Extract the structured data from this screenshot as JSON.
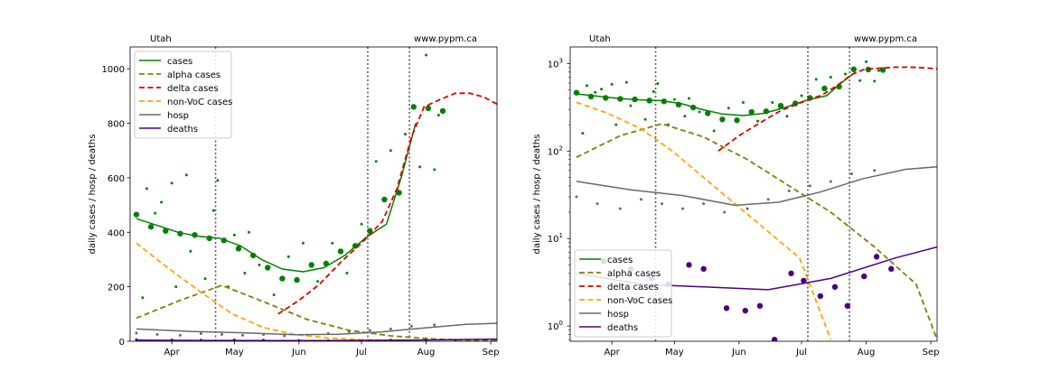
{
  "chart_data": [
    {
      "type": "line",
      "scale": "linear",
      "title": "Utah",
      "source": "www.pypm.ca",
      "xlabel": "",
      "ylabel": "daily cases / hosp / deaths",
      "x_ticks": [
        "Apr",
        "May",
        "Jun",
        "Jul",
        "Aug",
        "Sep"
      ],
      "y_ticks": [
        "0",
        "200",
        "400",
        "600",
        "800",
        "1000"
      ],
      "ylim": [
        0,
        1080
      ],
      "xlim": [
        "2021-03-12",
        "2021-09-04"
      ],
      "grid": false,
      "legend_position": "top-left",
      "vlines": [
        "2021-04-22",
        "2021-07-04",
        "2021-07-24"
      ],
      "series": [
        {
          "name": "cases",
          "color": "#008000",
          "dash": "solid",
          "x": [
            "2021-03-15",
            "2021-03-25",
            "2021-04-04",
            "2021-04-14",
            "2021-04-24",
            "2021-05-04",
            "2021-05-14",
            "2021-05-24",
            "2021-06-03",
            "2021-06-13",
            "2021-06-23",
            "2021-07-03",
            "2021-07-13",
            "2021-07-20",
            "2021-07-27"
          ],
          "y": [
            450,
            425,
            400,
            385,
            378,
            350,
            300,
            265,
            255,
            270,
            315,
            380,
            430,
            600,
            800
          ]
        },
        {
          "name": "alpha cases",
          "color": "#808000",
          "dash": "dashed",
          "x": [
            "2021-03-15",
            "2021-04-05",
            "2021-04-25",
            "2021-05-15",
            "2021-06-05",
            "2021-06-25",
            "2021-07-15",
            "2021-08-05",
            "2021-08-25",
            "2021-09-04"
          ],
          "y": [
            85,
            150,
            205,
            145,
            80,
            40,
            20,
            8,
            3,
            2
          ]
        },
        {
          "name": "delta cases",
          "color": "#dd0000",
          "dash": "dashed",
          "x": [
            "2021-05-22",
            "2021-06-01",
            "2021-06-11",
            "2021-06-21",
            "2021-07-01",
            "2021-07-11",
            "2021-07-18",
            "2021-07-25",
            "2021-07-31",
            "2021-08-07",
            "2021-08-15",
            "2021-08-22",
            "2021-08-29",
            "2021-09-04"
          ],
          "y": [
            100,
            150,
            210,
            290,
            360,
            440,
            560,
            750,
            860,
            885,
            910,
            910,
            895,
            870
          ]
        },
        {
          "name": "non-VoC cases",
          "color": "#ffa500",
          "dash": "dashed",
          "x": [
            "2021-03-15",
            "2021-03-30",
            "2021-04-15",
            "2021-04-30",
            "2021-05-15",
            "2021-05-30",
            "2021-06-15",
            "2021-06-30",
            "2021-07-15"
          ],
          "y": [
            360,
            270,
            180,
            100,
            50,
            25,
            12,
            6,
            3
          ]
        },
        {
          "name": "hosp",
          "color": "#696969",
          "dash": "solid",
          "x": [
            "2021-03-15",
            "2021-04-10",
            "2021-05-05",
            "2021-05-30",
            "2021-06-20",
            "2021-07-10",
            "2021-07-30",
            "2021-08-20",
            "2021-09-04"
          ],
          "y": [
            45,
            36,
            31,
            24,
            26,
            34,
            48,
            62,
            66
          ]
        },
        {
          "name": "deaths",
          "color": "#4b0082",
          "dash": "solid",
          "x": [
            "2021-03-15",
            "2021-04-15",
            "2021-05-15",
            "2021-06-15",
            "2021-07-15",
            "2021-08-15",
            "2021-09-04"
          ],
          "y": [
            4,
            3,
            2.8,
            2.6,
            3.5,
            6,
            8
          ]
        }
      ],
      "markers": [
        {
          "series": "cases",
          "color": "#008000",
          "size": "large",
          "x": [
            "2021-03-15",
            "2021-03-22",
            "2021-03-29",
            "2021-04-05",
            "2021-04-12",
            "2021-04-19",
            "2021-04-26",
            "2021-05-03",
            "2021-05-10",
            "2021-05-17",
            "2021-05-24",
            "2021-05-31",
            "2021-06-07",
            "2021-06-14",
            "2021-06-21",
            "2021-06-28",
            "2021-07-05",
            "2021-07-12",
            "2021-07-19",
            "2021-07-26",
            "2021-08-02",
            "2021-08-09"
          ],
          "y": [
            465,
            420,
            405,
            395,
            390,
            378,
            370,
            340,
            315,
            270,
            230,
            225,
            280,
            285,
            330,
            350,
            405,
            520,
            545,
            860,
            855,
            845
          ]
        },
        {
          "series": "cases",
          "color": "#008000",
          "size": "small",
          "x": [
            "2021-03-18",
            "2021-03-20",
            "2021-03-24",
            "2021-03-27",
            "2021-04-01",
            "2021-04-03",
            "2021-04-08",
            "2021-04-10",
            "2021-04-17",
            "2021-04-21",
            "2021-04-23",
            "2021-04-28",
            "2021-05-01",
            "2021-05-06",
            "2021-05-08",
            "2021-05-13",
            "2021-05-20",
            "2021-05-27",
            "2021-06-03",
            "2021-06-10",
            "2021-06-17",
            "2021-06-24",
            "2021-07-01",
            "2021-07-08",
            "2021-07-15",
            "2021-07-22",
            "2021-07-29",
            "2021-08-01",
            "2021-08-05",
            "2021-08-07"
          ],
          "y": [
            160,
            560,
            470,
            510,
            580,
            200,
            610,
            330,
            230,
            480,
            590,
            200,
            390,
            250,
            400,
            280,
            170,
            310,
            360,
            220,
            360,
            250,
            430,
            660,
            700,
            760,
            640,
            1050,
            630,
            830
          ]
        },
        {
          "series": "hosp",
          "color": "#696969",
          "size": "small",
          "x": [
            "2021-03-15",
            "2021-03-25",
            "2021-04-05",
            "2021-04-15",
            "2021-04-25",
            "2021-05-05",
            "2021-05-15",
            "2021-05-25",
            "2021-06-05",
            "2021-06-15",
            "2021-06-25",
            "2021-07-05",
            "2021-07-15",
            "2021-07-25",
            "2021-08-05"
          ],
          "y": [
            30,
            25,
            22,
            28,
            25,
            22,
            25,
            20,
            22,
            28,
            35,
            40,
            45,
            55,
            60
          ]
        },
        {
          "series": "deaths",
          "color": "#4b0082",
          "size": "small",
          "x": [
            "2021-03-15",
            "2021-04-01",
            "2021-04-15",
            "2021-05-01",
            "2021-05-15",
            "2021-06-01",
            "2021-06-15",
            "2021-07-01",
            "2021-07-15",
            "2021-08-01",
            "2021-08-15"
          ],
          "y": [
            6,
            5,
            4,
            5,
            4,
            3,
            2,
            3,
            4,
            5,
            4
          ]
        }
      ]
    },
    {
      "type": "line",
      "scale": "log",
      "title": "Utah",
      "source": "www.pypm.ca",
      "xlabel": "",
      "ylabel": "daily cases / hosp / deaths",
      "x_ticks": [
        "Apr",
        "May",
        "Jun",
        "Jul",
        "Aug",
        "Sep"
      ],
      "y_ticks": [
        "10^0",
        "10^1",
        "10^2",
        "10^3"
      ],
      "ylim": [
        0.67,
        1550
      ],
      "xlim": [
        "2021-03-12",
        "2021-09-04"
      ],
      "grid": false,
      "legend_position": "bottom-left",
      "vlines": [
        "2021-04-22",
        "2021-07-04",
        "2021-07-24"
      ],
      "series": [
        {
          "name": "cases",
          "color": "#008000",
          "dash": "solid",
          "x": [
            "2021-03-15",
            "2021-03-25",
            "2021-04-04",
            "2021-04-14",
            "2021-04-24",
            "2021-05-04",
            "2021-05-14",
            "2021-05-24",
            "2021-06-03",
            "2021-06-13",
            "2021-06-23",
            "2021-07-03",
            "2021-07-13",
            "2021-07-20",
            "2021-07-27"
          ],
          "y": [
            450,
            425,
            400,
            385,
            378,
            350,
            300,
            265,
            255,
            270,
            315,
            380,
            430,
            600,
            800
          ]
        },
        {
          "name": "alpha cases",
          "color": "#808000",
          "dash": "dashed",
          "x": [
            "2021-03-15",
            "2021-04-05",
            "2021-04-25",
            "2021-05-15",
            "2021-06-05",
            "2021-06-25",
            "2021-07-15",
            "2021-08-05",
            "2021-08-25",
            "2021-09-04"
          ],
          "y": [
            85,
            150,
            205,
            145,
            80,
            40,
            20,
            8,
            3,
            0.7
          ]
        },
        {
          "name": "delta cases",
          "color": "#dd0000",
          "dash": "dashed",
          "x": [
            "2021-05-22",
            "2021-06-01",
            "2021-06-11",
            "2021-06-21",
            "2021-07-01",
            "2021-07-11",
            "2021-07-18",
            "2021-07-25",
            "2021-07-31",
            "2021-08-07",
            "2021-08-15",
            "2021-08-22",
            "2021-08-29",
            "2021-09-04"
          ],
          "y": [
            100,
            150,
            210,
            290,
            360,
            440,
            560,
            750,
            860,
            885,
            910,
            910,
            895,
            870
          ]
        },
        {
          "name": "non-VoC cases",
          "color": "#ffa500",
          "dash": "dashed",
          "x": [
            "2021-03-15",
            "2021-03-30",
            "2021-04-15",
            "2021-04-30",
            "2021-05-15",
            "2021-05-30",
            "2021-06-15",
            "2021-06-30",
            "2021-07-15"
          ],
          "y": [
            360,
            270,
            180,
            100,
            50,
            25,
            12,
            6,
            0.7
          ]
        },
        {
          "name": "hosp",
          "color": "#696969",
          "dash": "solid",
          "x": [
            "2021-03-15",
            "2021-04-10",
            "2021-05-05",
            "2021-05-30",
            "2021-06-20",
            "2021-07-10",
            "2021-07-30",
            "2021-08-20",
            "2021-09-04"
          ],
          "y": [
            45,
            36,
            31,
            24,
            26,
            34,
            48,
            62,
            66
          ]
        },
        {
          "name": "deaths",
          "color": "#4b0082",
          "dash": "solid",
          "x": [
            "2021-03-15",
            "2021-04-15",
            "2021-05-15",
            "2021-06-15",
            "2021-07-15",
            "2021-08-15",
            "2021-09-04"
          ],
          "y": [
            4,
            3,
            2.8,
            2.6,
            3.5,
            6,
            8
          ]
        }
      ],
      "markers": [
        {
          "series": "cases",
          "color": "#008000",
          "size": "large",
          "x": [
            "2021-03-15",
            "2021-03-22",
            "2021-03-29",
            "2021-04-05",
            "2021-04-12",
            "2021-04-19",
            "2021-04-26",
            "2021-05-03",
            "2021-05-10",
            "2021-05-17",
            "2021-05-24",
            "2021-05-31",
            "2021-06-07",
            "2021-06-14",
            "2021-06-21",
            "2021-06-28",
            "2021-07-05",
            "2021-07-12",
            "2021-07-19",
            "2021-07-26",
            "2021-08-02",
            "2021-08-09"
          ],
          "y": [
            465,
            420,
            405,
            395,
            390,
            378,
            370,
            340,
            315,
            270,
            230,
            225,
            280,
            285,
            330,
            350,
            405,
            520,
            545,
            860,
            855,
            845
          ]
        },
        {
          "series": "cases",
          "color": "#008000",
          "size": "small",
          "x": [
            "2021-03-18",
            "2021-03-20",
            "2021-03-24",
            "2021-03-27",
            "2021-04-01",
            "2021-04-03",
            "2021-04-08",
            "2021-04-10",
            "2021-04-17",
            "2021-04-21",
            "2021-04-23",
            "2021-04-28",
            "2021-05-01",
            "2021-05-06",
            "2021-05-08",
            "2021-05-13",
            "2021-05-20",
            "2021-05-27",
            "2021-06-03",
            "2021-06-10",
            "2021-06-17",
            "2021-06-24",
            "2021-07-01",
            "2021-07-08",
            "2021-07-15",
            "2021-07-22",
            "2021-07-29",
            "2021-08-01",
            "2021-08-05",
            "2021-08-07"
          ],
          "y": [
            160,
            560,
            470,
            510,
            580,
            200,
            610,
            330,
            230,
            480,
            590,
            200,
            390,
            250,
            400,
            280,
            170,
            310,
            360,
            220,
            360,
            250,
            430,
            660,
            700,
            760,
            640,
            1050,
            630,
            830
          ]
        },
        {
          "series": "hosp",
          "color": "#696969",
          "size": "small",
          "x": [
            "2021-03-15",
            "2021-03-25",
            "2021-04-05",
            "2021-04-15",
            "2021-04-25",
            "2021-05-05",
            "2021-05-15",
            "2021-05-25",
            "2021-06-05",
            "2021-06-15",
            "2021-06-25",
            "2021-07-05",
            "2021-07-15",
            "2021-07-25",
            "2021-08-05"
          ],
          "y": [
            30,
            25,
            22,
            28,
            25,
            22,
            25,
            20,
            22,
            28,
            35,
            40,
            45,
            55,
            60
          ]
        },
        {
          "series": "deaths",
          "color": "#4b0082",
          "size": "large",
          "x": [
            "2021-03-28",
            "2021-04-10",
            "2021-04-20",
            "2021-04-28",
            "2021-05-08",
            "2021-05-15",
            "2021-05-26",
            "2021-06-04",
            "2021-06-11",
            "2021-06-18",
            "2021-06-26",
            "2021-07-02",
            "2021-07-10",
            "2021-07-17",
            "2021-07-23",
            "2021-07-31",
            "2021-08-06",
            "2021-08-13"
          ],
          "y": [
            5.5,
            4.5,
            3.5,
            3.0,
            5.0,
            4.5,
            1.6,
            1.5,
            1.7,
            0.7,
            4.0,
            3.3,
            2.2,
            2.8,
            1.7,
            3.7,
            6.2,
            4.5
          ]
        }
      ]
    }
  ]
}
